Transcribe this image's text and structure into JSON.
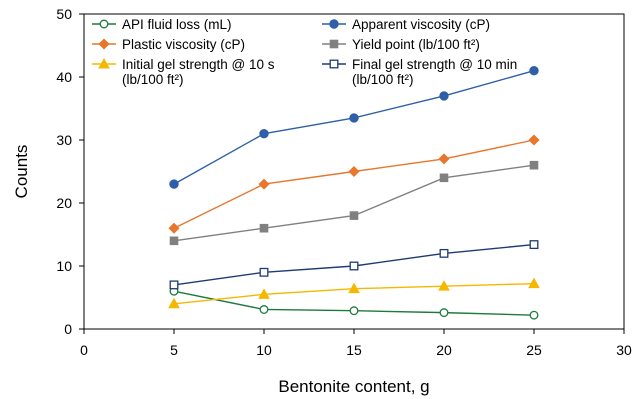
{
  "chart_data": {
    "type": "line",
    "x": [
      5,
      10,
      15,
      20,
      25
    ],
    "xlim": [
      0,
      30
    ],
    "ylim": [
      0,
      50
    ],
    "xticks": [
      "0",
      "5",
      "10",
      "15",
      "20",
      "25",
      "30"
    ],
    "yticks": [
      "0",
      "10",
      "20",
      "30",
      "40",
      "50"
    ],
    "xlabel": "Bentonite content, g",
    "ylabel": "Counts",
    "grid": false,
    "legend_position": "top",
    "series": [
      {
        "name": "API fluid loss (mL)",
        "color": "#1e7a3c",
        "marker": "open-circle",
        "values": [
          6,
          3.1,
          2.9,
          2.6,
          2.2
        ]
      },
      {
        "name": "Apparent viscosity (cP)",
        "color": "#2e5fa8",
        "marker": "filled-circle",
        "values": [
          23,
          31,
          33.5,
          37,
          41
        ]
      },
      {
        "name": "Plastic viscosity (cP)",
        "color": "#e8762c",
        "marker": "filled-diamond",
        "values": [
          16,
          23,
          25,
          27,
          30
        ]
      },
      {
        "name": "Yield point (lb/100 ft²)",
        "color": "#808080",
        "marker": "filled-square",
        "values": [
          14,
          16,
          18,
          24,
          26
        ]
      },
      {
        "name": "Initial gel strength @ 10 s",
        "name_cont": "(lb/100 ft²)",
        "color": "#f5b800",
        "marker": "filled-triangle",
        "values": [
          4,
          5.5,
          6.4,
          6.8,
          7.2
        ]
      },
      {
        "name": "Final gel strength @ 10 min",
        "name_cont": "(lb/100 ft²)",
        "color": "#1f3b73",
        "marker": "open-square",
        "values": [
          7,
          9,
          10,
          12,
          13.4
        ]
      }
    ]
  }
}
